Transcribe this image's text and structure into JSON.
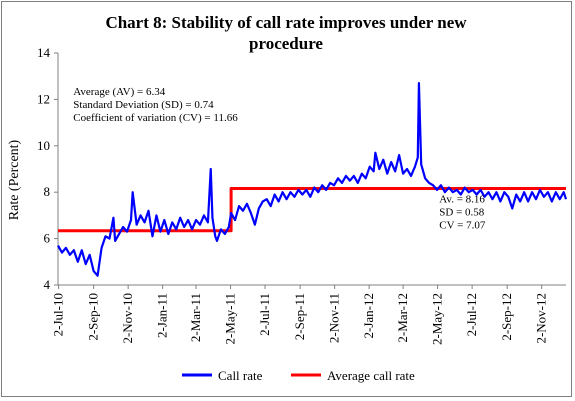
{
  "chart_data": {
    "type": "line",
    "title_line1": "Chart 8: Stability of call rate improves under new",
    "title_line2": "procedure",
    "ylabel": "Rate (Percent)",
    "xlabel": "",
    "ylim": [
      4,
      14
    ],
    "yticks": [
      "4",
      "6",
      "8",
      "10",
      "12",
      "14"
    ],
    "x_tick_labels": [
      "2-Jul-10",
      "2-Sep-10",
      "2-Nov-10",
      "2-Jan-11",
      "2-Mar-11",
      "2-May-11",
      "2-Jul-11",
      "2-Sep-11",
      "2-Nov-11",
      "2-Jan-12",
      "2-Mar-12",
      "2-May-12",
      "2-Jul-12",
      "2-Sep-12",
      "2-Nov-12"
    ],
    "x_range": [
      "2010-07-01",
      "2012-12-15"
    ],
    "grid": false,
    "legend_position": "bottom",
    "series": [
      {
        "name": "Call rate",
        "color": "#0000ff",
        "points": [
          [
            "2010-07-01",
            5.7
          ],
          [
            "2010-07-08",
            5.4
          ],
          [
            "2010-07-15",
            5.6
          ],
          [
            "2010-07-22",
            5.3
          ],
          [
            "2010-07-29",
            5.5
          ],
          [
            "2010-08-05",
            5.0
          ],
          [
            "2010-08-12",
            5.5
          ],
          [
            "2010-08-19",
            4.9
          ],
          [
            "2010-08-26",
            5.3
          ],
          [
            "2010-09-02",
            4.6
          ],
          [
            "2010-09-09",
            4.4
          ],
          [
            "2010-09-16",
            5.6
          ],
          [
            "2010-09-23",
            6.1
          ],
          [
            "2010-09-30",
            6.0
          ],
          [
            "2010-10-07",
            6.9
          ],
          [
            "2010-10-10",
            5.9
          ],
          [
            "2010-10-17",
            6.2
          ],
          [
            "2010-10-24",
            6.5
          ],
          [
            "2010-10-31",
            6.3
          ],
          [
            "2010-11-07",
            6.8
          ],
          [
            "2010-11-10",
            8.0
          ],
          [
            "2010-11-17",
            6.6
          ],
          [
            "2010-11-24",
            7.0
          ],
          [
            "2010-12-01",
            6.7
          ],
          [
            "2010-12-08",
            7.2
          ],
          [
            "2010-12-15",
            6.1
          ],
          [
            "2010-12-22",
            7.0
          ],
          [
            "2010-12-29",
            6.3
          ],
          [
            "2011-01-05",
            6.8
          ],
          [
            "2011-01-12",
            6.2
          ],
          [
            "2011-01-19",
            6.7
          ],
          [
            "2011-01-26",
            6.4
          ],
          [
            "2011-02-02",
            6.9
          ],
          [
            "2011-02-09",
            6.5
          ],
          [
            "2011-02-16",
            6.8
          ],
          [
            "2011-02-23",
            6.4
          ],
          [
            "2011-03-02",
            6.8
          ],
          [
            "2011-03-09",
            6.6
          ],
          [
            "2011-03-16",
            7.0
          ],
          [
            "2011-03-23",
            6.7
          ],
          [
            "2011-03-28",
            9.0
          ],
          [
            "2011-03-31",
            6.9
          ],
          [
            "2011-04-05",
            6.1
          ],
          [
            "2011-04-08",
            5.9
          ],
          [
            "2011-04-15",
            6.4
          ],
          [
            "2011-04-22",
            6.2
          ],
          [
            "2011-04-29",
            6.5
          ],
          [
            "2011-05-03",
            7.1
          ],
          [
            "2011-05-10",
            6.8
          ],
          [
            "2011-05-17",
            7.4
          ],
          [
            "2011-05-24",
            7.2
          ],
          [
            "2011-05-31",
            7.5
          ],
          [
            "2011-06-07",
            7.1
          ],
          [
            "2011-06-14",
            6.6
          ],
          [
            "2011-06-21",
            7.3
          ],
          [
            "2011-06-28",
            7.6
          ],
          [
            "2011-07-05",
            7.7
          ],
          [
            "2011-07-12",
            7.4
          ],
          [
            "2011-07-19",
            7.9
          ],
          [
            "2011-07-26",
            7.6
          ],
          [
            "2011-08-02",
            8.0
          ],
          [
            "2011-08-09",
            7.7
          ],
          [
            "2011-08-16",
            8.0
          ],
          [
            "2011-08-23",
            7.8
          ],
          [
            "2011-08-30",
            8.1
          ],
          [
            "2011-09-06",
            7.9
          ],
          [
            "2011-09-13",
            8.1
          ],
          [
            "2011-09-20",
            7.8
          ],
          [
            "2011-09-27",
            8.2
          ],
          [
            "2011-10-04",
            8.0
          ],
          [
            "2011-10-11",
            8.3
          ],
          [
            "2011-10-18",
            8.1
          ],
          [
            "2011-10-25",
            8.4
          ],
          [
            "2011-11-01",
            8.3
          ],
          [
            "2011-11-08",
            8.6
          ],
          [
            "2011-11-15",
            8.4
          ],
          [
            "2011-11-22",
            8.7
          ],
          [
            "2011-11-29",
            8.5
          ],
          [
            "2011-12-06",
            8.7
          ],
          [
            "2011-12-13",
            8.4
          ],
          [
            "2011-12-20",
            8.8
          ],
          [
            "2011-12-27",
            8.6
          ],
          [
            "2012-01-03",
            9.1
          ],
          [
            "2012-01-10",
            8.9
          ],
          [
            "2012-01-13",
            9.7
          ],
          [
            "2012-01-20",
            9.0
          ],
          [
            "2012-01-27",
            9.4
          ],
          [
            "2012-02-03",
            8.8
          ],
          [
            "2012-02-10",
            9.3
          ],
          [
            "2012-02-17",
            8.9
          ],
          [
            "2012-02-24",
            9.6
          ],
          [
            "2012-03-02",
            8.8
          ],
          [
            "2012-03-09",
            9.0
          ],
          [
            "2012-03-16",
            8.7
          ],
          [
            "2012-03-23",
            9.1
          ],
          [
            "2012-03-28",
            9.5
          ],
          [
            "2012-03-30",
            12.7
          ],
          [
            "2012-04-03",
            9.2
          ],
          [
            "2012-04-10",
            8.6
          ],
          [
            "2012-04-17",
            8.4
          ],
          [
            "2012-04-24",
            8.3
          ],
          [
            "2012-05-01",
            8.1
          ],
          [
            "2012-05-08",
            8.3
          ],
          [
            "2012-05-15",
            8.0
          ],
          [
            "2012-05-22",
            8.2
          ],
          [
            "2012-05-29",
            8.0
          ],
          [
            "2012-06-05",
            8.1
          ],
          [
            "2012-06-12",
            7.9
          ],
          [
            "2012-06-19",
            8.2
          ],
          [
            "2012-06-26",
            8.0
          ],
          [
            "2012-07-03",
            8.1
          ],
          [
            "2012-07-10",
            7.9
          ],
          [
            "2012-07-17",
            8.1
          ],
          [
            "2012-07-24",
            7.8
          ],
          [
            "2012-07-31",
            8.0
          ],
          [
            "2012-08-07",
            7.7
          ],
          [
            "2012-08-14",
            8.0
          ],
          [
            "2012-08-21",
            7.6
          ],
          [
            "2012-08-28",
            8.0
          ],
          [
            "2012-09-04",
            7.8
          ],
          [
            "2012-09-11",
            7.3
          ],
          [
            "2012-09-18",
            7.9
          ],
          [
            "2012-09-25",
            7.6
          ],
          [
            "2012-10-02",
            8.0
          ],
          [
            "2012-10-09",
            7.6
          ],
          [
            "2012-10-16",
            8.0
          ],
          [
            "2012-10-23",
            7.7
          ],
          [
            "2012-10-30",
            8.1
          ],
          [
            "2012-11-06",
            7.8
          ],
          [
            "2012-11-13",
            8.0
          ],
          [
            "2012-11-20",
            7.6
          ],
          [
            "2012-11-27",
            8.0
          ],
          [
            "2012-12-04",
            7.7
          ],
          [
            "2012-12-11",
            8.0
          ],
          [
            "2012-12-15",
            7.7
          ]
        ]
      },
      {
        "name": "Average call rate",
        "color": "#ff0000",
        "points": [
          [
            "2010-07-01",
            6.34
          ],
          [
            "2011-05-03",
            6.34
          ],
          [
            "2011-05-03",
            8.16
          ],
          [
            "2012-12-15",
            8.16
          ]
        ]
      }
    ],
    "annotations": [
      {
        "id": "before",
        "lines": [
          "Average (AV) = 6.34",
          "Standard Deviation (SD) = 0.74",
          "Coefficient of variation (CV) = 11.66"
        ],
        "anchor_date": "2010-07-28",
        "anchor_y": 12.2
      },
      {
        "id": "after",
        "lines": [
          "Av. = 8.16",
          "SD = 0.58",
          "CV = 7.07"
        ],
        "anchor_date": "2012-05-05",
        "anchor_y": 7.55
      }
    ]
  }
}
